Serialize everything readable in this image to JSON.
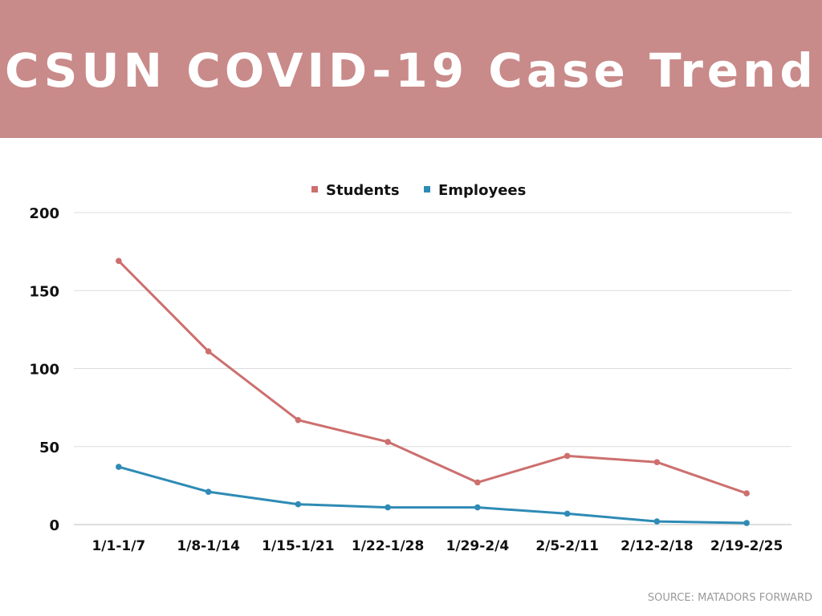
{
  "header": {
    "title": "CSUN COVID-19 Case Trend",
    "background_color": "#c98a8a"
  },
  "chart_data": {
    "type": "line",
    "title": "",
    "xlabel": "",
    "ylabel": "",
    "categories": [
      "1/1-1/7",
      "1/8-1/14",
      "1/15-1/21",
      "1/22-1/28",
      "1/29-2/4",
      "2/5-2/11",
      "2/12-2/18",
      "2/19-2/25"
    ],
    "series": [
      {
        "name": "Students",
        "color": "#cd6f6f",
        "values": [
          169,
          111,
          67,
          53,
          27,
          44,
          40,
          20
        ]
      },
      {
        "name": "Employees",
        "color": "#2e8bb5",
        "values": [
          37,
          21,
          13,
          11,
          11,
          7,
          2,
          1
        ]
      }
    ],
    "ylim": [
      0,
      200
    ],
    "yticks": [
      0,
      50,
      100,
      150,
      200
    ],
    "grid": true,
    "legend": "top-center"
  },
  "footer": {
    "source": "SOURCE: MATADORS FORWARD"
  }
}
